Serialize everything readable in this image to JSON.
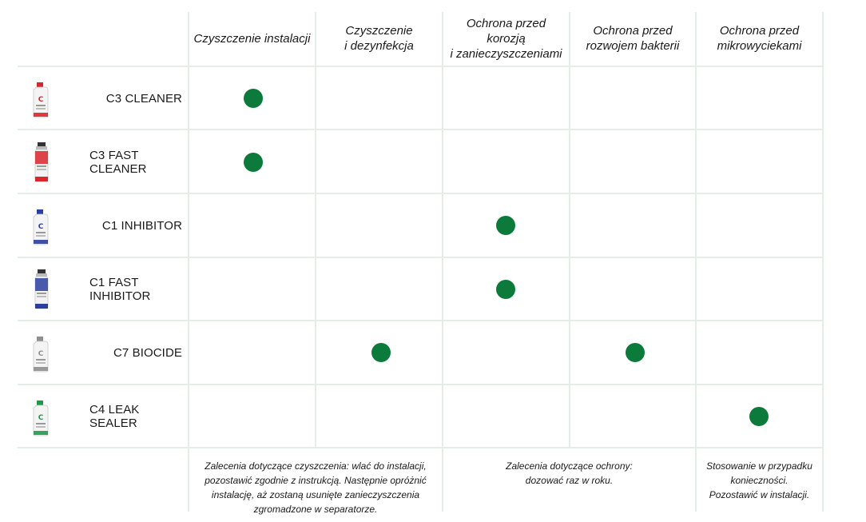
{
  "columns": [
    {
      "label": "Czyszczenie instalacji"
    },
    {
      "label": "Czyszczenie\ni dezynfekcja"
    },
    {
      "label": "Ochrona przed\nkorozją\ni zanieczyszczeniami"
    },
    {
      "label": "Ochrona przed\nrozwojem bakterii"
    },
    {
      "label": "Ochrona przed\nmikrowyciekami"
    }
  ],
  "products": [
    {
      "name": "C3 CLEANER",
      "icon": "red-bottle-icon",
      "color": "#d9262c",
      "marks": [
        true,
        false,
        false,
        false,
        false
      ]
    },
    {
      "name": "C3 FAST CLEANER",
      "icon": "red-aerosol-icon",
      "color": "#d9262c",
      "marks": [
        true,
        false,
        false,
        false,
        false
      ]
    },
    {
      "name": "C1 INHIBITOR",
      "icon": "blue-bottle-icon",
      "color": "#2b3f9e",
      "marks": [
        false,
        false,
        true,
        false,
        false
      ]
    },
    {
      "name": "C1 FAST INHIBITOR",
      "icon": "blue-aerosol-icon",
      "color": "#2b3f9e",
      "marks": [
        false,
        false,
        true,
        false,
        false
      ]
    },
    {
      "name": "C7 BIOCIDE",
      "icon": "grey-bottle-icon",
      "color": "#8f8f8f",
      "marks": [
        false,
        true,
        false,
        true,
        false
      ]
    },
    {
      "name": "C4 LEAK SEALER",
      "icon": "green-bottle-icon",
      "color": "#1f9a4a",
      "marks": [
        false,
        false,
        false,
        false,
        true
      ]
    }
  ],
  "notes": [
    {
      "text": "Zalecenia dotyczące czyszczenia: wlać do instalacji,\npozostawić zgodnie z instrukcją. Następnie opróżnić\ninstalację, aż zostaną usunięte zanieczyszczenia\nzgromadzone w separatorze."
    },
    {
      "text": "Zalecenia dotyczące ochrony:\ndozować raz w roku."
    },
    {
      "text": "Stosowanie w przypadku\nkonieczności.\nPozostawić w instalacji."
    }
  ],
  "accent_color": "#0b7a3b",
  "grid_color": "#e3eee6"
}
